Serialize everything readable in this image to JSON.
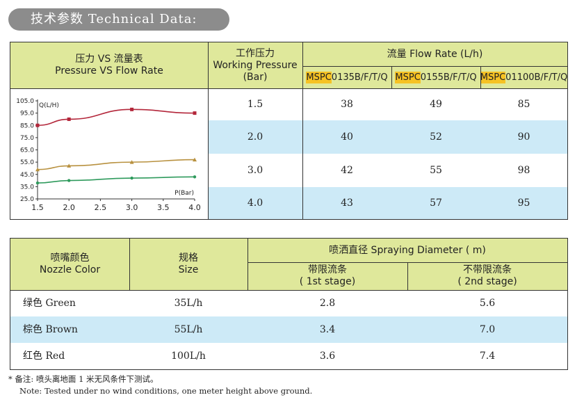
{
  "header_title": "技术参数 Technical Data:",
  "table1": {
    "chart_header": {
      "cn": "压力 VS 流量表",
      "en": "Pressure  VS  Flow Rate"
    },
    "pressure_header": {
      "cn": "工作压力",
      "en": "Working Pressure",
      "unit": "(Bar)"
    },
    "flow_header": "流量 Flow Rate (L/h)",
    "models": [
      {
        "prefix": "MSPC",
        "suffix": "0135B/F/T/Q"
      },
      {
        "prefix": "MSPC",
        "suffix": "0155B/F/T/Q"
      },
      {
        "prefix": "MSPC",
        "suffix": "01100B/F/T/Q"
      }
    ],
    "rows": [
      {
        "pressure": "1.5",
        "values": [
          "38",
          "49",
          "85"
        ]
      },
      {
        "pressure": "2.0",
        "values": [
          "40",
          "52",
          "90"
        ]
      },
      {
        "pressure": "3.0",
        "values": [
          "42",
          "55",
          "98"
        ]
      },
      {
        "pressure": "4.0",
        "values": [
          "43",
          "57",
          "95"
        ]
      }
    ]
  },
  "chart_data": {
    "type": "line",
    "xlabel": "P(Bar)",
    "ylabel": "Q(L/H)",
    "x": [
      1.5,
      2.0,
      3.0,
      4.0
    ],
    "x_ticks": [
      "1.5",
      "2.0",
      "2.5",
      "3.0",
      "3.5",
      "4.0"
    ],
    "y_ticks": [
      "105.0",
      "95.0",
      "85.0",
      "75.0",
      "65.0",
      "55.0",
      "45.0",
      "35.0",
      "25.0"
    ],
    "xlim": [
      1.5,
      4.0
    ],
    "ylim": [
      25,
      105
    ],
    "series": [
      {
        "values": [
          85,
          90,
          98,
          95
        ],
        "color": "#b3263a",
        "marker": "square"
      },
      {
        "values": [
          49,
          52,
          55,
          57
        ],
        "color": "#b8913f",
        "marker": "triangle"
      },
      {
        "values": [
          38,
          40,
          42,
          43
        ],
        "color": "#2e9a5c",
        "marker": "circle"
      }
    ],
    "grid": false
  },
  "table2": {
    "color_header": {
      "cn": "喷嘴颜色",
      "en": "Nozzle Color"
    },
    "size_header": {
      "cn": "规格",
      "en": "Size"
    },
    "diameter_header": "喷洒直径 Spraying Diameter ( m)",
    "stage1": {
      "cn": "带限流条",
      "en": "( 1st stage)"
    },
    "stage2": {
      "cn": "不带限流条",
      "en": "( 2nd stage)"
    },
    "rows": [
      {
        "color": "绿色 Green",
        "size": "35L/h",
        "stage1": "2.8",
        "stage2": "5.6"
      },
      {
        "color": "棕色 Brown",
        "size": "55L/h",
        "stage1": "3.4",
        "stage2": "7.0"
      },
      {
        "color": "红色 Red",
        "size": "100L/h",
        "stage1": "3.6",
        "stage2": "7.4"
      }
    ]
  },
  "notes": {
    "cn": "* 备注:  喷头离地面 1 米无风条件下测试。",
    "en": "Note: Tested under no wind conditions, one meter height above ground."
  },
  "colors": {
    "header_bg": "#dfe89b",
    "row_alt": "#cdeaf7",
    "highlight": "#f6c224",
    "pill": "#8c8c8c"
  }
}
